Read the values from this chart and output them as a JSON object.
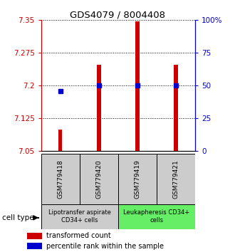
{
  "title": "GDS4079 / 8004408",
  "samples": [
    "GSM779418",
    "GSM779420",
    "GSM779419",
    "GSM779421"
  ],
  "bar_values": [
    7.1,
    7.248,
    7.348,
    7.248
  ],
  "percentile_values": [
    46,
    50,
    50,
    50
  ],
  "ylim_left": [
    7.05,
    7.35
  ],
  "ylim_right": [
    0,
    100
  ],
  "left_ticks": [
    7.05,
    7.125,
    7.2,
    7.275,
    7.35
  ],
  "right_ticks": [
    0,
    25,
    50,
    75,
    100
  ],
  "right_tick_labels": [
    "0",
    "25",
    "50",
    "75",
    "100%"
  ],
  "bar_color": "#cc0000",
  "dot_color": "#0000cc",
  "cell_types": [
    {
      "label": "Lipotransfer aspirate\nCD34+ cells",
      "color": "#cccccc",
      "indices": [
        0,
        1
      ]
    },
    {
      "label": "Leukapheresis CD34+\ncells",
      "color": "#66ee66",
      "indices": [
        2,
        3
      ]
    }
  ],
  "legend_bar_label": "transformed count",
  "legend_dot_label": "percentile rank within the sample",
  "cell_type_label": "cell type",
  "sample_box_color": "#cccccc",
  "bar_width": 0.1
}
